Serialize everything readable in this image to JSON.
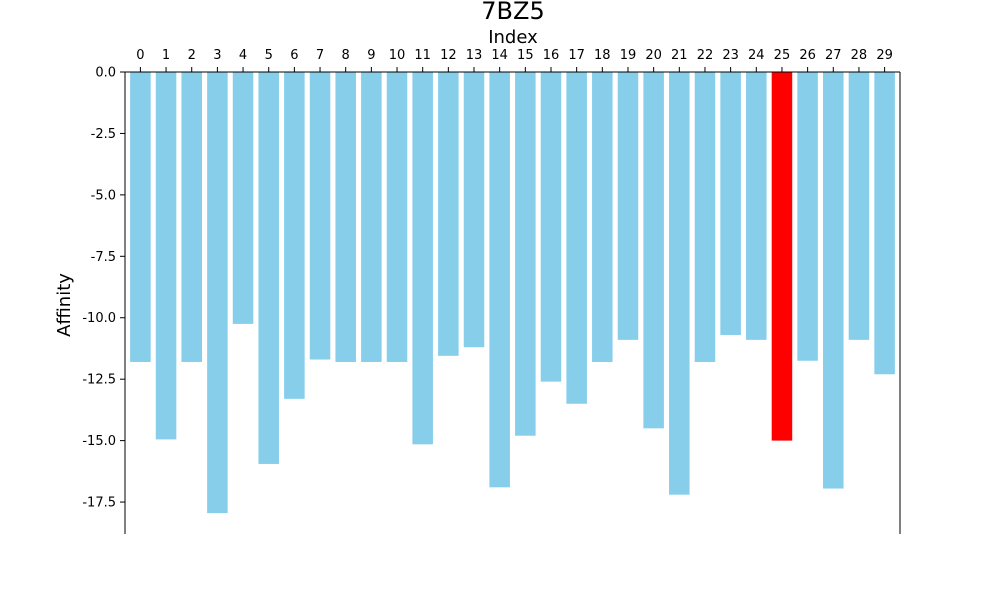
{
  "chart_data": {
    "type": "bar",
    "title": "7BZ5",
    "xlabel": "Index",
    "ylabel": "Affinity",
    "categories": [
      "0",
      "1",
      "2",
      "3",
      "4",
      "5",
      "6",
      "7",
      "8",
      "9",
      "10",
      "11",
      "12",
      "13",
      "14",
      "15",
      "16",
      "17",
      "18",
      "19",
      "20",
      "21",
      "22",
      "23",
      "24",
      "25",
      "26",
      "27",
      "28",
      "29"
    ],
    "values": [
      -11.8,
      -14.95,
      -11.8,
      -17.95,
      -10.25,
      -15.95,
      -13.3,
      -11.7,
      -11.8,
      -11.8,
      -11.8,
      -15.15,
      -11.55,
      -11.2,
      -16.9,
      -14.8,
      -12.6,
      -13.5,
      -11.8,
      -10.9,
      -14.5,
      -17.2,
      -11.8,
      -10.7,
      -10.9,
      -15.0,
      -11.75,
      -16.95,
      -10.9,
      -12.3
    ],
    "highlight_index": 25,
    "ylim": [
      -18.8,
      0
    ],
    "yticks": [
      0.0,
      -2.5,
      -5.0,
      -7.5,
      -10.0,
      -12.5,
      -15.0,
      -17.5
    ],
    "ytick_labels": [
      "0.0",
      "-2.5",
      "-5.0",
      "-7.5",
      "-10.0",
      "-12.5",
      "-15.0",
      "-17.5"
    ],
    "x_axis_position": "top",
    "grid": false,
    "colors": {
      "bar": "#87CEEB",
      "highlight": "#FF0000",
      "axis": "#000000"
    }
  }
}
